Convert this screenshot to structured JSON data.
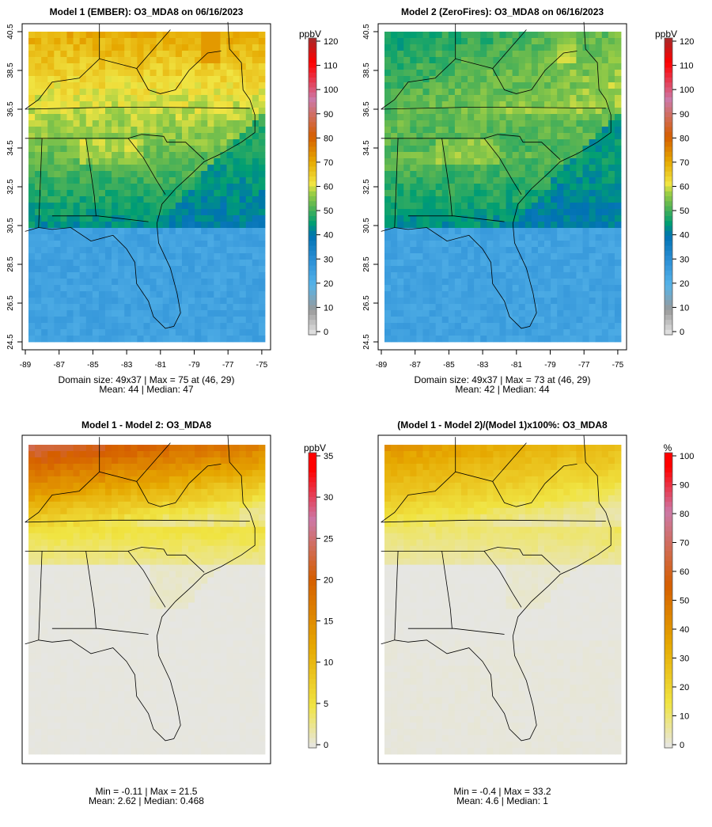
{
  "chart_data": [
    {
      "type": "heatmap",
      "title": "Model 1 (EMBER): O3_MDA8 on 06/16/2023",
      "units": "ppbV",
      "scale": "conc",
      "xticks": [
        "-89",
        "-87",
        "-85",
        "-83",
        "-81",
        "-79",
        "-77",
        "-75"
      ],
      "yticks": [
        "40.5",
        "38.5",
        "36.5",
        "34.5",
        "32.5",
        "30.5",
        "28.5",
        "26.5",
        "24.5"
      ],
      "cbar_ticks": [
        "120",
        "110",
        "100",
        "90",
        "80",
        "70",
        "60",
        "50",
        "40",
        "30",
        "20",
        "10",
        "0"
      ],
      "cbar_max": 120,
      "stats1": "Domain size: 49x37 | Max = 75 at (46, 29)",
      "stats2": "Mean: 44 |  Median: 47",
      "grid": [
        49,
        37
      ],
      "max": 75,
      "mean": 44,
      "median": 47,
      "offset": 0
    },
    {
      "type": "heatmap",
      "title": "Model 2 (ZeroFires): O3_MDA8 on 06/16/2023",
      "units": "ppbV",
      "scale": "conc",
      "xticks": [
        "-89",
        "-87",
        "-85",
        "-83",
        "-81",
        "-79",
        "-77",
        "-75"
      ],
      "yticks": [
        "40.5",
        "38.5",
        "36.5",
        "34.5",
        "32.5",
        "30.5",
        "28.5",
        "26.5",
        "24.5"
      ],
      "cbar_ticks": [
        "120",
        "110",
        "100",
        "90",
        "80",
        "70",
        "60",
        "50",
        "40",
        "30",
        "20",
        "10",
        "0"
      ],
      "cbar_max": 120,
      "stats1": "Domain size: 49x37 | Max = 73 at (46, 29)",
      "stats2": "Mean: 42 |  Median: 44",
      "grid": [
        49,
        37
      ],
      "max": 73,
      "mean": 42,
      "median": 44,
      "offset": -1
    },
    {
      "type": "heatmap",
      "title": "Model 1 - Model 2: O3_MDA8",
      "units": "ppbV",
      "scale": "diff",
      "cbar_ticks": [
        "35",
        "30",
        "25",
        "20",
        "15",
        "10",
        "5",
        "0"
      ],
      "cbar_max": 35,
      "stats1": "Min = -0.11 | Max = 21.5",
      "stats2": "Mean: 2.62 |  Median: 0.468",
      "min": -0.11,
      "max": 21.5,
      "mean": 2.62,
      "median": 0.468
    },
    {
      "type": "heatmap",
      "title": "(Model 1 - Model 2)/(Model 1)x100%: O3_MDA8",
      "units": "%",
      "scale": "pct",
      "cbar_ticks": [
        "100",
        "90",
        "80",
        "70",
        "60",
        "50",
        "40",
        "30",
        "20",
        "10",
        "0"
      ],
      "cbar_max": 100,
      "stats1": "Min = -0.4 | Max = 33.2",
      "stats2": "Mean: 4.6 |  Median: 1",
      "min": -0.4,
      "max": 33.2,
      "mean": 4.6,
      "median": 1
    }
  ],
  "colors": {
    "conc": [
      [
        0,
        "#e6e6e6"
      ],
      [
        10,
        "#999999"
      ],
      [
        20,
        "#56b4e9"
      ],
      [
        30,
        "#2c8fd6"
      ],
      [
        40,
        "#0072b2"
      ],
      [
        45,
        "#009e73"
      ],
      [
        52,
        "#5ab552"
      ],
      [
        57,
        "#9acd45"
      ],
      [
        61,
        "#f0e442"
      ],
      [
        70,
        "#e6a800"
      ],
      [
        80,
        "#d55e00"
      ],
      [
        95,
        "#cc79a7"
      ],
      [
        110,
        "#ff0000"
      ],
      [
        120,
        "#a52a2a"
      ]
    ],
    "diff": [
      [
        0,
        "#e6e6e6"
      ],
      [
        5,
        "#f0e442"
      ],
      [
        12,
        "#e6a800"
      ],
      [
        20,
        "#d55e00"
      ],
      [
        27,
        "#cc79a7"
      ],
      [
        33,
        "#ff0000"
      ],
      [
        35,
        "#ff0000"
      ]
    ],
    "pct": [
      [
        0,
        "#e6e6e6"
      ],
      [
        15,
        "#f0e442"
      ],
      [
        35,
        "#e6a800"
      ],
      [
        55,
        "#d55e00"
      ],
      [
        80,
        "#cc79a7"
      ],
      [
        95,
        "#ff0000"
      ],
      [
        100,
        "#ff0000"
      ]
    ]
  }
}
